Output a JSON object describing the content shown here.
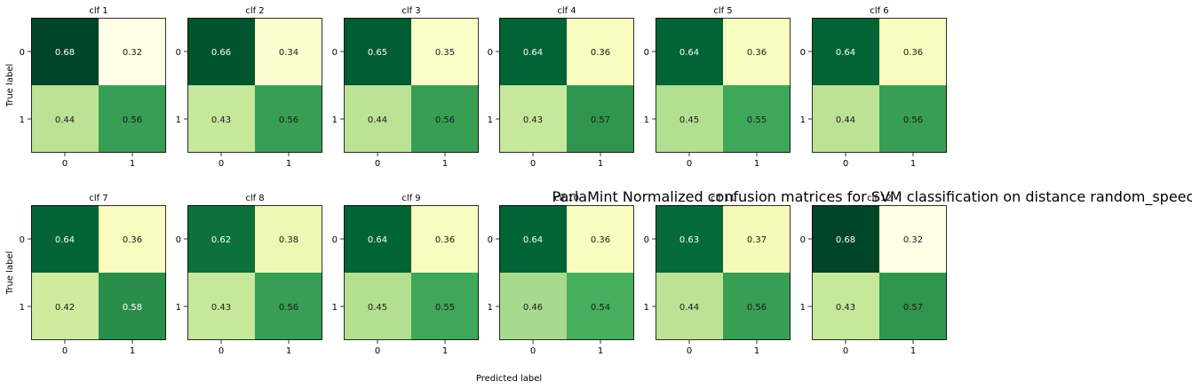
{
  "chart_data": {
    "type": "heatmap",
    "title": "ParlaMint Normalized confusion matrices for SVM classification on distance random_speech",
    "xlabel": "Predicted label",
    "ylabel": "True label",
    "classes": [
      "0",
      "1"
    ],
    "colormap": "Greens",
    "vmin": 0,
    "vmax": 1,
    "matrices": [
      {
        "title": "clf 1",
        "values": [
          [
            0.68,
            0.32
          ],
          [
            0.44,
            0.56
          ]
        ]
      },
      {
        "title": "clf 2",
        "values": [
          [
            0.66,
            0.34
          ],
          [
            0.43,
            0.56
          ]
        ]
      },
      {
        "title": "clf 3",
        "values": [
          [
            0.65,
            0.35
          ],
          [
            0.44,
            0.56
          ]
        ]
      },
      {
        "title": "clf 4",
        "values": [
          [
            0.64,
            0.36
          ],
          [
            0.43,
            0.57
          ]
        ]
      },
      {
        "title": "clf 5",
        "values": [
          [
            0.64,
            0.36
          ],
          [
            0.45,
            0.55
          ]
        ]
      },
      {
        "title": "clf 6",
        "values": [
          [
            0.64,
            0.36
          ],
          [
            0.44,
            0.56
          ]
        ]
      },
      {
        "title": "clf 7",
        "values": [
          [
            0.64,
            0.36
          ],
          [
            0.42,
            0.58
          ]
        ]
      },
      {
        "title": "clf 8",
        "values": [
          [
            0.62,
            0.38
          ],
          [
            0.43,
            0.56
          ]
        ]
      },
      {
        "title": "clf 9",
        "values": [
          [
            0.64,
            0.36
          ],
          [
            0.45,
            0.55
          ]
        ]
      },
      {
        "title": "clf 10",
        "values": [
          [
            0.64,
            0.36
          ],
          [
            0.46,
            0.54
          ]
        ]
      },
      {
        "title": "clf 11",
        "values": [
          [
            0.63,
            0.37
          ],
          [
            0.44,
            0.56
          ]
        ]
      },
      {
        "title": "clf 12",
        "values": [
          [
            0.68,
            0.32
          ],
          [
            0.43,
            0.57
          ]
        ]
      }
    ]
  }
}
